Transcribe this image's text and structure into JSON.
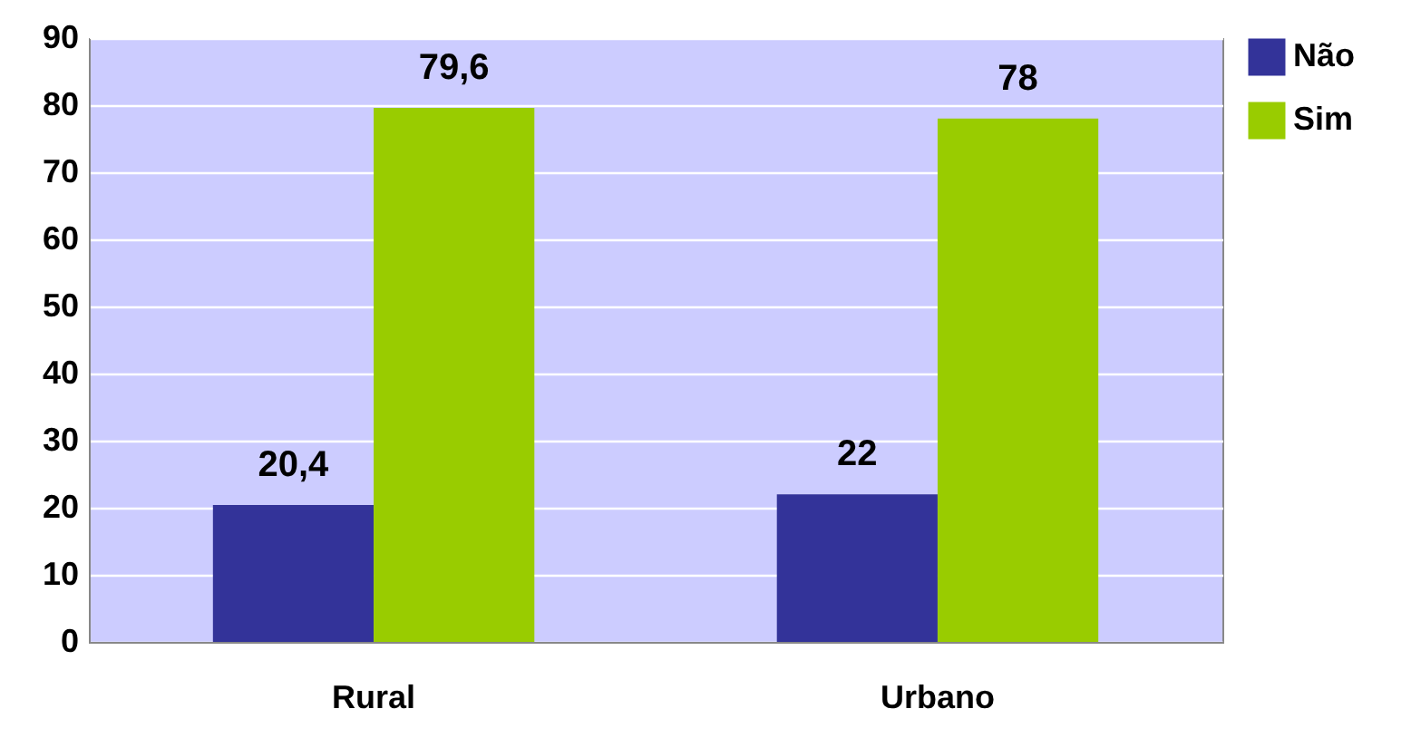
{
  "chart_data": {
    "type": "bar",
    "categories": [
      "Rural",
      "Urbano"
    ],
    "series": [
      {
        "name": "Não",
        "color": "#333399",
        "values": [
          20.4,
          22
        ],
        "value_labels": [
          "20,4",
          "22"
        ]
      },
      {
        "name": "Sim",
        "color": "#99cc00",
        "values": [
          79.6,
          78
        ],
        "value_labels": [
          "79,6",
          "78"
        ]
      }
    ],
    "ylim": [
      0,
      90
    ],
    "yticks": [
      0,
      10,
      20,
      30,
      40,
      50,
      60,
      70,
      80,
      90
    ],
    "grid": "y",
    "legend": "right"
  }
}
